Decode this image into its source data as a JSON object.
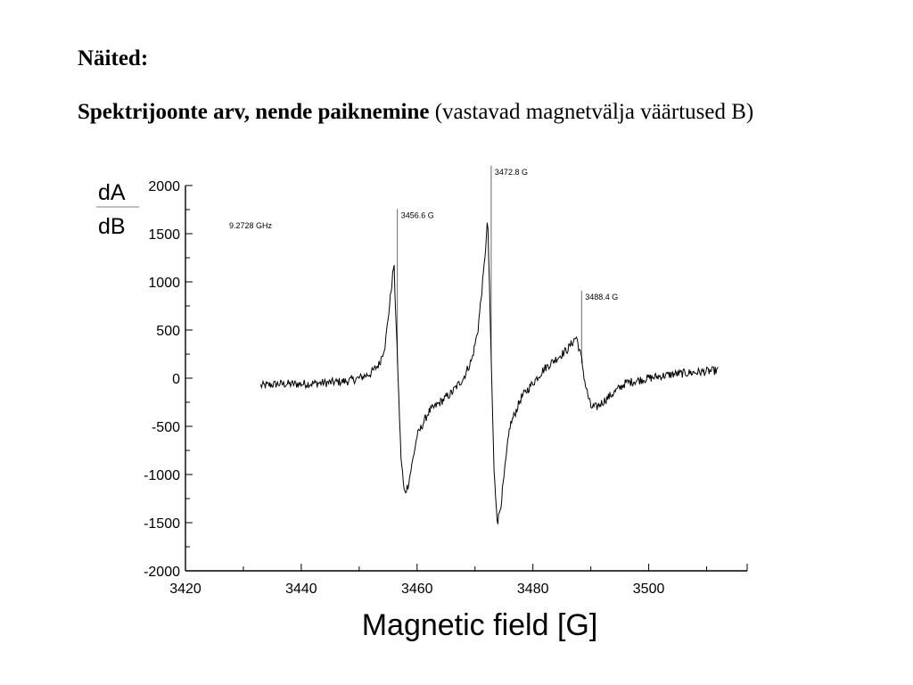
{
  "slide": {
    "heading": "Näited:",
    "subheading_bold": "Spektrijoonte arv, nende paiknemine",
    "subheading_rest": " (vastavad magnetvälja väärtused B)"
  },
  "chart_data": {
    "type": "line",
    "title": "",
    "xlabel": "Magnetic field [G]",
    "ylabel_numerator": "dA",
    "ylabel_denominator": "dB",
    "xlim": [
      3420,
      3517
    ],
    "ylim": [
      -2000,
      2000
    ],
    "x_ticks": [
      3420,
      3440,
      3460,
      3480,
      3500
    ],
    "y_ticks": [
      2000,
      1500,
      1000,
      500,
      0,
      -500,
      -1000,
      -1500,
      -2000
    ],
    "frequency_label": "9.2728 GHz",
    "grid": false,
    "series": [
      {
        "x": [
          3433,
          3436,
          3440,
          3444,
          3448,
          3450,
          3452,
          3453.5,
          3454.5,
          3455.5,
          3456,
          3456.6,
          3457.2,
          3457.8,
          3458.5,
          3460,
          3462,
          3464,
          3466,
          3468,
          3469.5,
          3470.5,
          3471.5,
          3472.2,
          3472.8,
          3473.3,
          3473.9,
          3474.5,
          3476,
          3478,
          3480,
          3482,
          3484,
          3486,
          3487.5,
          3488.4,
          3489,
          3490,
          3491,
          3493,
          3496,
          3500,
          3504,
          3508,
          3512
        ],
        "y": [
          -80,
          -60,
          -60,
          -50,
          -30,
          0,
          50,
          150,
          350,
          900,
          1200,
          200,
          -800,
          -1200,
          -1100,
          -600,
          -350,
          -250,
          -150,
          0,
          200,
          500,
          1100,
          1650,
          200,
          -1000,
          -1500,
          -1300,
          -500,
          -200,
          -50,
          100,
          200,
          300,
          430,
          200,
          -50,
          -300,
          -300,
          -200,
          -50,
          0,
          40,
          60,
          80
        ]
      }
    ],
    "peak_annotations": [
      {
        "label": "3456.6 G",
        "x": 3456.6
      },
      {
        "label": "3472.8 G",
        "x": 3472.8
      },
      {
        "label": "3488.4 G",
        "x": 3488.4
      }
    ]
  }
}
